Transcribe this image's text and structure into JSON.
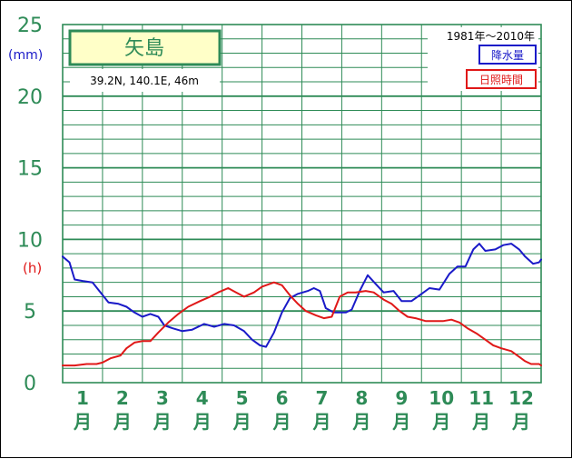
{
  "chart_data": {
    "type": "line",
    "station": "矢島",
    "coordinates": "39.2N,  140.1E,  46m",
    "period": "1981年〜2010年",
    "y_unit_precip": "(mm)",
    "y_unit_sunshine": "(h)",
    "ylim": [
      0,
      25
    ],
    "yticks": [
      "0",
      "5",
      "10",
      "15",
      "20",
      "25"
    ],
    "month_numbers": [
      "1",
      "2",
      "3",
      "4",
      "5",
      "6",
      "7",
      "8",
      "9",
      "10",
      "11",
      "12"
    ],
    "month_suffix": "月",
    "xlim": [
      1,
      13
    ],
    "series": [
      {
        "name": "降水量",
        "color": "#1a1ac8",
        "points": [
          [
            1.0,
            8.8
          ],
          [
            1.17,
            8.4
          ],
          [
            1.3,
            7.2
          ],
          [
            1.5,
            7.1
          ],
          [
            1.75,
            7.0
          ],
          [
            1.95,
            6.3
          ],
          [
            2.15,
            5.6
          ],
          [
            2.4,
            5.5
          ],
          [
            2.6,
            5.3
          ],
          [
            2.8,
            4.9
          ],
          [
            3.0,
            4.6
          ],
          [
            3.2,
            4.8
          ],
          [
            3.4,
            4.6
          ],
          [
            3.55,
            4.0
          ],
          [
            3.75,
            3.8
          ],
          [
            4.0,
            3.6
          ],
          [
            4.25,
            3.7
          ],
          [
            4.55,
            4.1
          ],
          [
            4.8,
            3.9
          ],
          [
            5.05,
            4.1
          ],
          [
            5.3,
            4.0
          ],
          [
            5.55,
            3.6
          ],
          [
            5.75,
            3.0
          ],
          [
            5.95,
            2.6
          ],
          [
            6.1,
            2.5
          ],
          [
            6.3,
            3.5
          ],
          [
            6.5,
            4.9
          ],
          [
            6.7,
            5.9
          ],
          [
            6.9,
            6.2
          ],
          [
            7.15,
            6.4
          ],
          [
            7.3,
            6.6
          ],
          [
            7.45,
            6.4
          ],
          [
            7.6,
            5.2
          ],
          [
            7.8,
            4.9
          ],
          [
            8.1,
            4.9
          ],
          [
            8.25,
            5.1
          ],
          [
            8.45,
            6.4
          ],
          [
            8.65,
            7.5
          ],
          [
            8.85,
            6.9
          ],
          [
            9.05,
            6.3
          ],
          [
            9.3,
            6.4
          ],
          [
            9.5,
            5.7
          ],
          [
            9.75,
            5.7
          ],
          [
            9.95,
            6.1
          ],
          [
            10.2,
            6.6
          ],
          [
            10.45,
            6.5
          ],
          [
            10.7,
            7.6
          ],
          [
            10.9,
            8.1
          ],
          [
            11.1,
            8.1
          ],
          [
            11.3,
            9.3
          ],
          [
            11.45,
            9.7
          ],
          [
            11.6,
            9.2
          ],
          [
            11.85,
            9.3
          ],
          [
            12.05,
            9.6
          ],
          [
            12.25,
            9.7
          ],
          [
            12.45,
            9.3
          ],
          [
            12.6,
            8.8
          ],
          [
            12.8,
            8.3
          ],
          [
            12.95,
            8.4
          ],
          [
            13.0,
            8.6
          ]
        ]
      },
      {
        "name": "日照時間",
        "color": "#e01818",
        "points": [
          [
            1.0,
            1.2
          ],
          [
            1.3,
            1.2
          ],
          [
            1.6,
            1.3
          ],
          [
            1.85,
            1.3
          ],
          [
            2.0,
            1.4
          ],
          [
            2.2,
            1.7
          ],
          [
            2.45,
            1.9
          ],
          [
            2.6,
            2.4
          ],
          [
            2.8,
            2.8
          ],
          [
            3.0,
            2.9
          ],
          [
            3.2,
            2.9
          ],
          [
            3.4,
            3.5
          ],
          [
            3.65,
            4.2
          ],
          [
            3.9,
            4.8
          ],
          [
            4.15,
            5.3
          ],
          [
            4.45,
            5.7
          ],
          [
            4.7,
            6.0
          ],
          [
            4.9,
            6.3
          ],
          [
            5.15,
            6.6
          ],
          [
            5.35,
            6.3
          ],
          [
            5.55,
            6.0
          ],
          [
            5.8,
            6.3
          ],
          [
            6.0,
            6.7
          ],
          [
            6.3,
            7.0
          ],
          [
            6.5,
            6.8
          ],
          [
            6.7,
            6.1
          ],
          [
            6.9,
            5.5
          ],
          [
            7.1,
            5.0
          ],
          [
            7.35,
            4.7
          ],
          [
            7.55,
            4.5
          ],
          [
            7.75,
            4.6
          ],
          [
            7.95,
            6.0
          ],
          [
            8.15,
            6.3
          ],
          [
            8.35,
            6.3
          ],
          [
            8.6,
            6.4
          ],
          [
            8.8,
            6.3
          ],
          [
            9.05,
            5.8
          ],
          [
            9.25,
            5.5
          ],
          [
            9.45,
            5.0
          ],
          [
            9.65,
            4.6
          ],
          [
            9.85,
            4.5
          ],
          [
            10.1,
            4.3
          ],
          [
            10.3,
            4.3
          ],
          [
            10.55,
            4.3
          ],
          [
            10.75,
            4.4
          ],
          [
            10.95,
            4.2
          ],
          [
            11.15,
            3.8
          ],
          [
            11.4,
            3.4
          ],
          [
            11.6,
            3.0
          ],
          [
            11.8,
            2.6
          ],
          [
            12.0,
            2.4
          ],
          [
            12.25,
            2.2
          ],
          [
            12.45,
            1.8
          ],
          [
            12.6,
            1.5
          ],
          [
            12.75,
            1.3
          ],
          [
            12.95,
            1.3
          ],
          [
            13.0,
            1.2
          ]
        ]
      }
    ]
  }
}
